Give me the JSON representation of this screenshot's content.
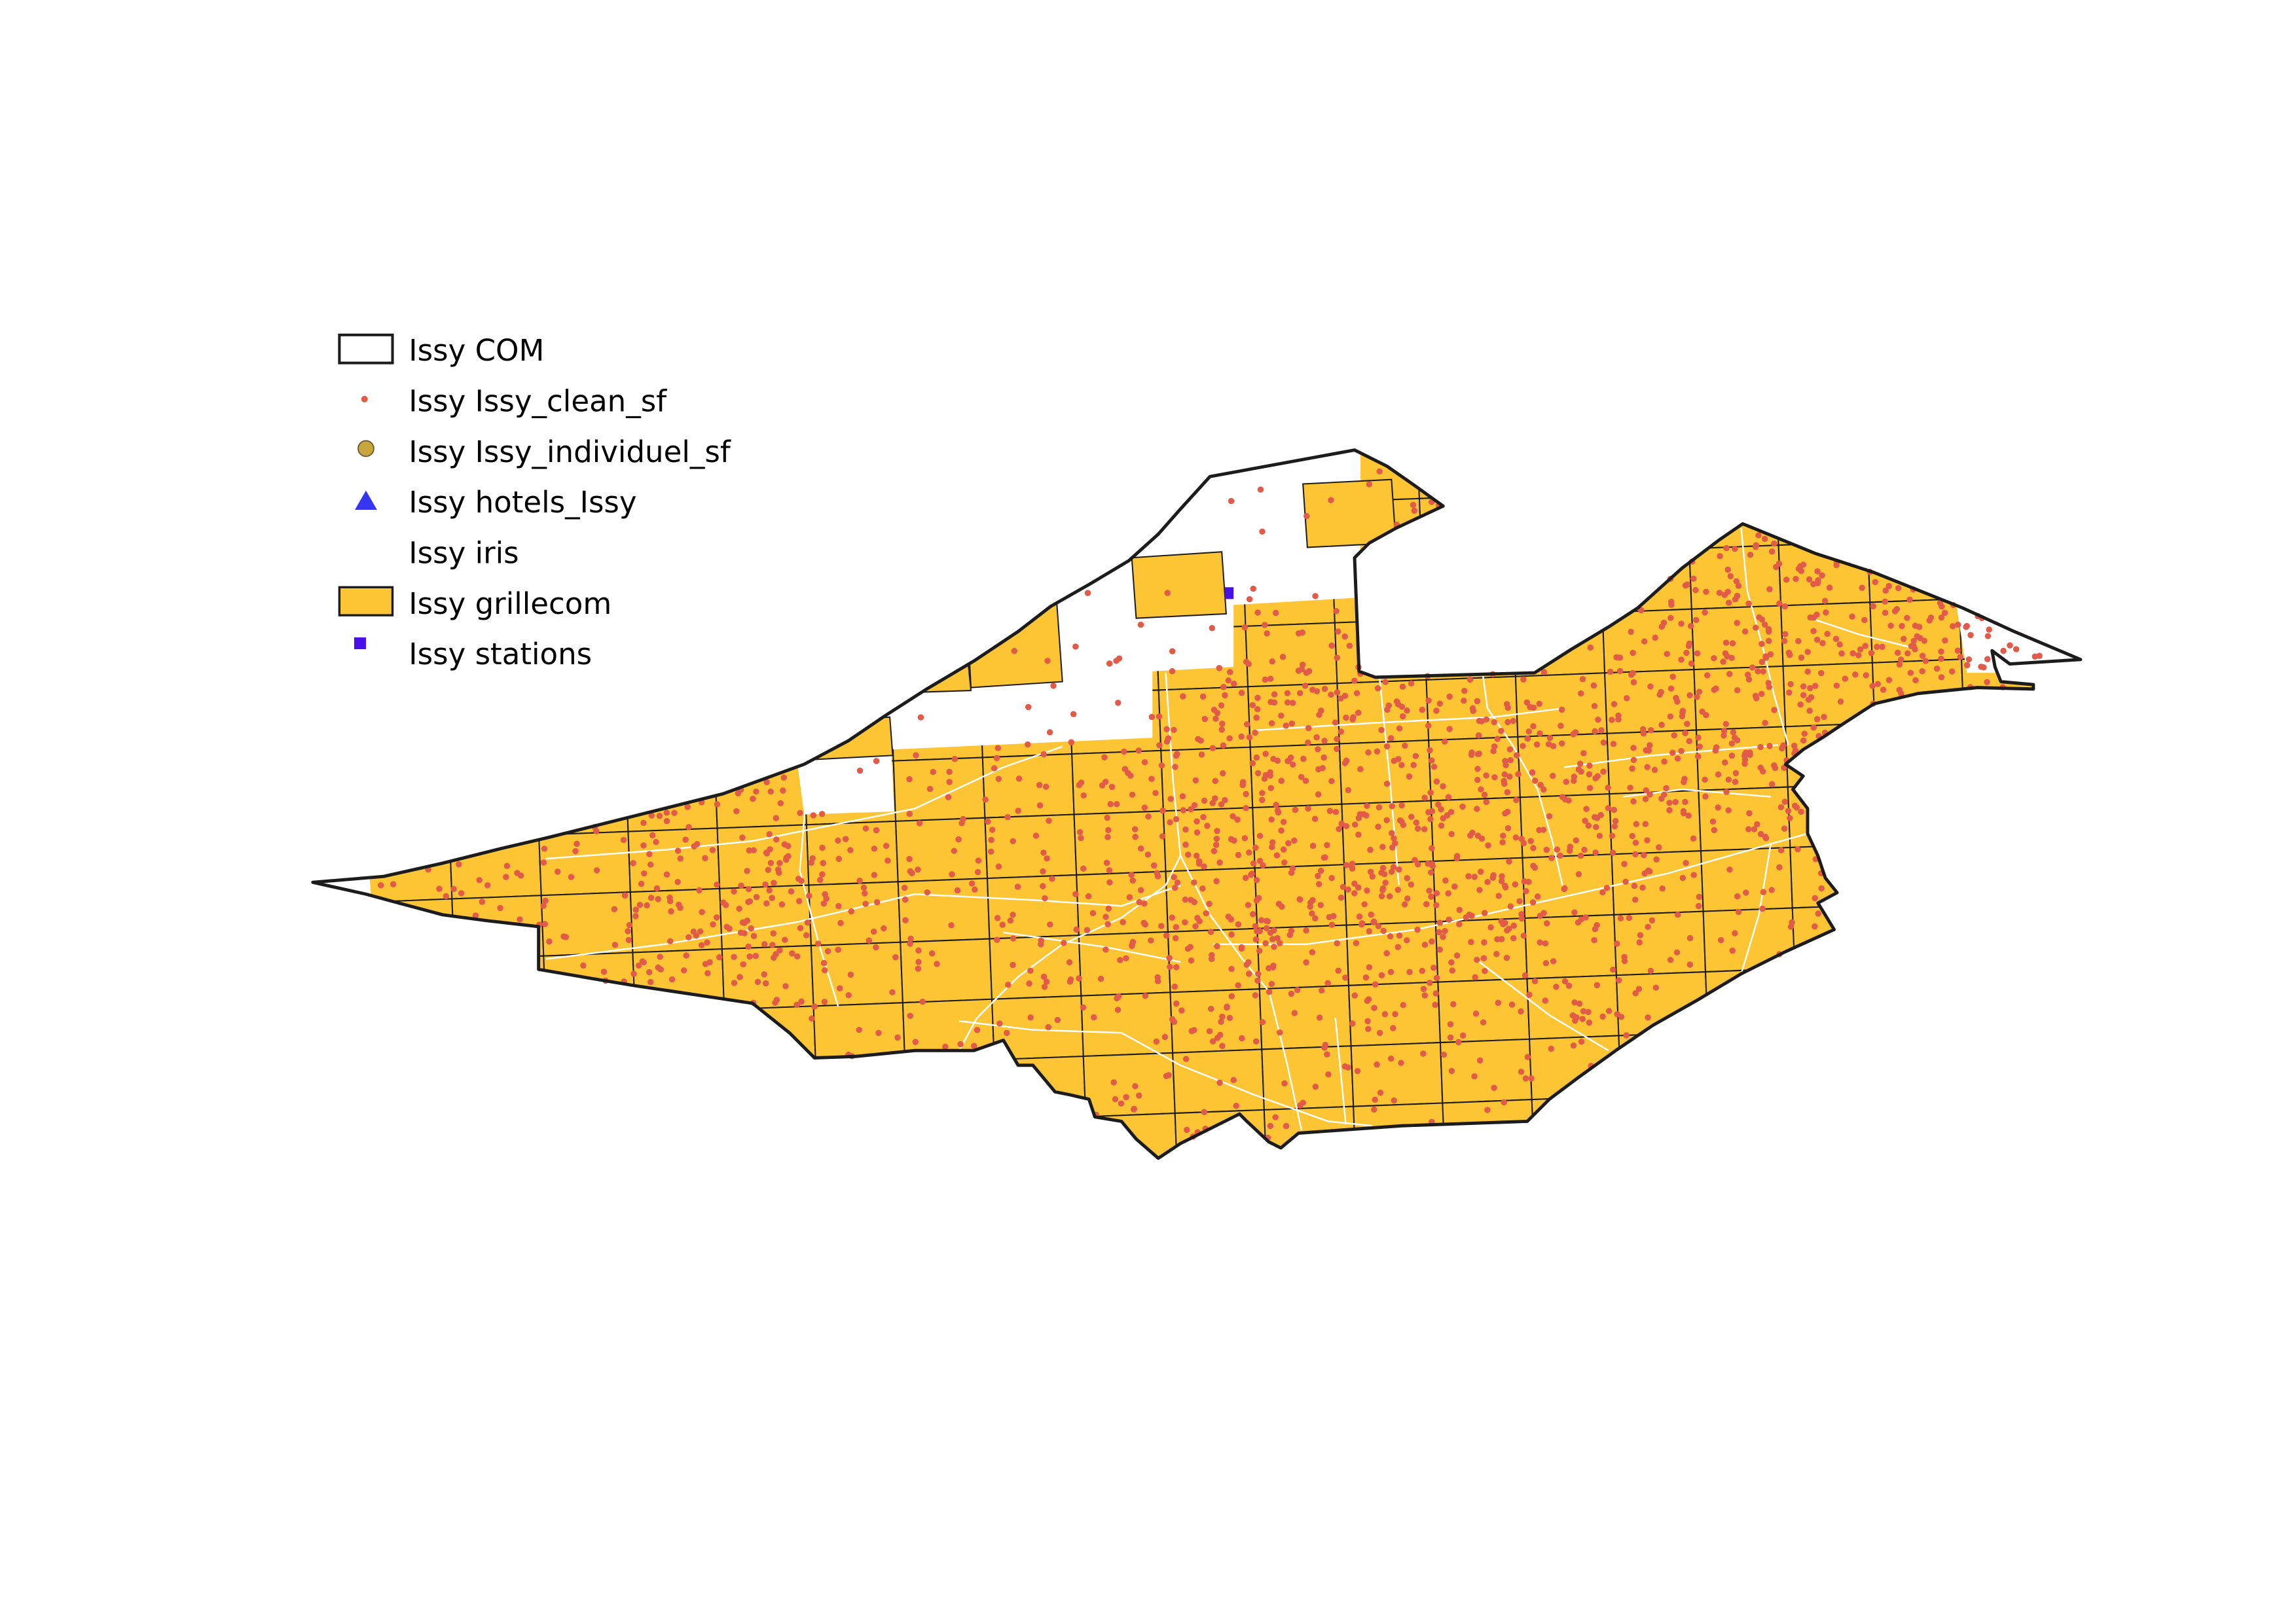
{
  "map": {
    "legend": [
      {
        "label": "Issy COM",
        "icon": "polygon-outline",
        "fill": "#ffffff",
        "stroke": "#1c1c1c"
      },
      {
        "label": "Issy Issy_clean_sf",
        "icon": "point",
        "color": "#e25a48"
      },
      {
        "label": "Issy Issy_individuel_sf",
        "icon": "circle",
        "color": "#c9a53e",
        "stroke": "#6b5a2a"
      },
      {
        "label": "Issy hotels_Issy",
        "icon": "triangle",
        "color": "#3535f2"
      },
      {
        "label": "Issy iris",
        "icon": "polygon",
        "fill": "#ffffff"
      },
      {
        "label": "Issy grillecom",
        "icon": "polygon",
        "fill": "#fdc533",
        "stroke": "#1c1c1c"
      },
      {
        "label": "Issy stations",
        "icon": "square",
        "color": "#4a10e8"
      }
    ]
  }
}
